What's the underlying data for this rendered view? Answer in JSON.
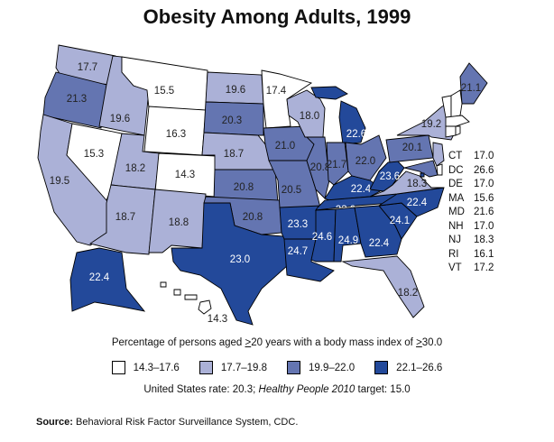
{
  "title": "Obesity Among Adults, 1999",
  "colors": {
    "bin1": "#ffffff",
    "bin2": "#abb1d7",
    "bin3": "#6475b1",
    "bin4": "#23499a",
    "border": "#000000"
  },
  "legend": {
    "caption_parts": [
      "Percentage of persons aged ",
      ">",
      "20 years with a body mass index of ",
      ">",
      "30.0"
    ],
    "bins": [
      {
        "label": "14.3–17.6",
        "bin": "bin1"
      },
      {
        "label": "17.7–19.8",
        "bin": "bin2"
      },
      {
        "label": "19.9–22.0",
        "bin": "bin3"
      },
      {
        "label": "22.1–26.6",
        "bin": "bin4"
      }
    ]
  },
  "rate_line": {
    "prefix": "United States rate: 20.3; ",
    "italic": "Healthy People 2010",
    "suffix": " target: 15.0"
  },
  "source": {
    "bold": "Source:",
    "text": " Behavioral Risk Factor Surveillance System, CDC."
  },
  "states": {
    "WA": {
      "value": "17.7",
      "bin": "bin2"
    },
    "OR": {
      "value": "21.3",
      "bin": "bin3"
    },
    "CA": {
      "value": "19.5",
      "bin": "bin2"
    },
    "NV": {
      "value": "15.3",
      "bin": "bin1"
    },
    "ID": {
      "value": "19.6",
      "bin": "bin2"
    },
    "MT": {
      "value": "15.5",
      "bin": "bin1"
    },
    "WY": {
      "value": "16.3",
      "bin": "bin1"
    },
    "UT": {
      "value": "18.2",
      "bin": "bin2"
    },
    "CO": {
      "value": "14.3",
      "bin": "bin1"
    },
    "AZ": {
      "value": "18.7",
      "bin": "bin2"
    },
    "NM": {
      "value": "18.8",
      "bin": "bin2"
    },
    "ND": {
      "value": "19.6",
      "bin": "bin2"
    },
    "SD": {
      "value": "20.3",
      "bin": "bin3"
    },
    "NE": {
      "value": "18.7",
      "bin": "bin2"
    },
    "KS": {
      "value": "20.8",
      "bin": "bin3"
    },
    "OK": {
      "value": "20.8",
      "bin": "bin3"
    },
    "TX": {
      "value": "23.0",
      "bin": "bin4"
    },
    "MN": {
      "value": "17.4",
      "bin": "bin1"
    },
    "IA": {
      "value": "21.0",
      "bin": "bin3"
    },
    "MO": {
      "value": "20.5",
      "bin": "bin3"
    },
    "AR": {
      "value": "23.3",
      "bin": "bin4"
    },
    "LA": {
      "value": "24.7",
      "bin": "bin4"
    },
    "WI": {
      "value": "18.0",
      "bin": "bin2"
    },
    "IL": {
      "value": "20.8",
      "bin": "bin3"
    },
    "MI": {
      "value": "22.6",
      "bin": "bin4"
    },
    "IN": {
      "value": "21.7",
      "bin": "bin3"
    },
    "OH": {
      "value": "22.0",
      "bin": "bin3"
    },
    "KY": {
      "value": "22.4",
      "bin": "bin4"
    },
    "TN": {
      "value": "23.0",
      "bin": "bin4"
    },
    "MS": {
      "value": "24.6",
      "bin": "bin4"
    },
    "AL": {
      "value": "24.9",
      "bin": "bin4"
    },
    "GA": {
      "value": "22.4",
      "bin": "bin4"
    },
    "FL": {
      "value": "18.2",
      "bin": "bin2"
    },
    "SC": {
      "value": "24.1",
      "bin": "bin4"
    },
    "NC": {
      "value": "22.4",
      "bin": "bin4"
    },
    "VA": {
      "value": "18.3",
      "bin": "bin2"
    },
    "WV": {
      "value": "23.6",
      "bin": "bin4"
    },
    "PA": {
      "value": "20.1",
      "bin": "bin3"
    },
    "NY": {
      "value": "19.2",
      "bin": "bin2"
    },
    "ME": {
      "value": "21.1",
      "bin": "bin3"
    },
    "AK": {
      "value": "22.4",
      "bin": "bin4"
    },
    "HI": {
      "value": "14.3",
      "bin": "bin1"
    },
    "VT": {
      "value": "17.2",
      "bin": "bin1"
    },
    "NH": {
      "value": "17.0",
      "bin": "bin1"
    },
    "MA": {
      "value": "15.6",
      "bin": "bin1"
    },
    "CT": {
      "value": "17.0",
      "bin": "bin1"
    },
    "RI": {
      "value": "16.1",
      "bin": "bin1"
    },
    "NJ": {
      "value": "18.3",
      "bin": "bin2"
    },
    "DE": {
      "value": "17.0",
      "bin": "bin1"
    },
    "MD": {
      "value": "21.6",
      "bin": "bin3"
    },
    "DC": {
      "value": "26.6",
      "bin": "bin4"
    }
  },
  "small_states_table": [
    {
      "code": "CT",
      "value": "17.0"
    },
    {
      "code": "DC",
      "value": "26.6"
    },
    {
      "code": "DE",
      "value": "17.0"
    },
    {
      "code": "MA",
      "value": "15.6"
    },
    {
      "code": "MD",
      "value": "21.6"
    },
    {
      "code": "NH",
      "value": "17.0"
    },
    {
      "code": "NJ",
      "value": "18.3"
    },
    {
      "code": "RI",
      "value": "16.1"
    },
    {
      "code": "VT",
      "value": "17.2"
    }
  ]
}
